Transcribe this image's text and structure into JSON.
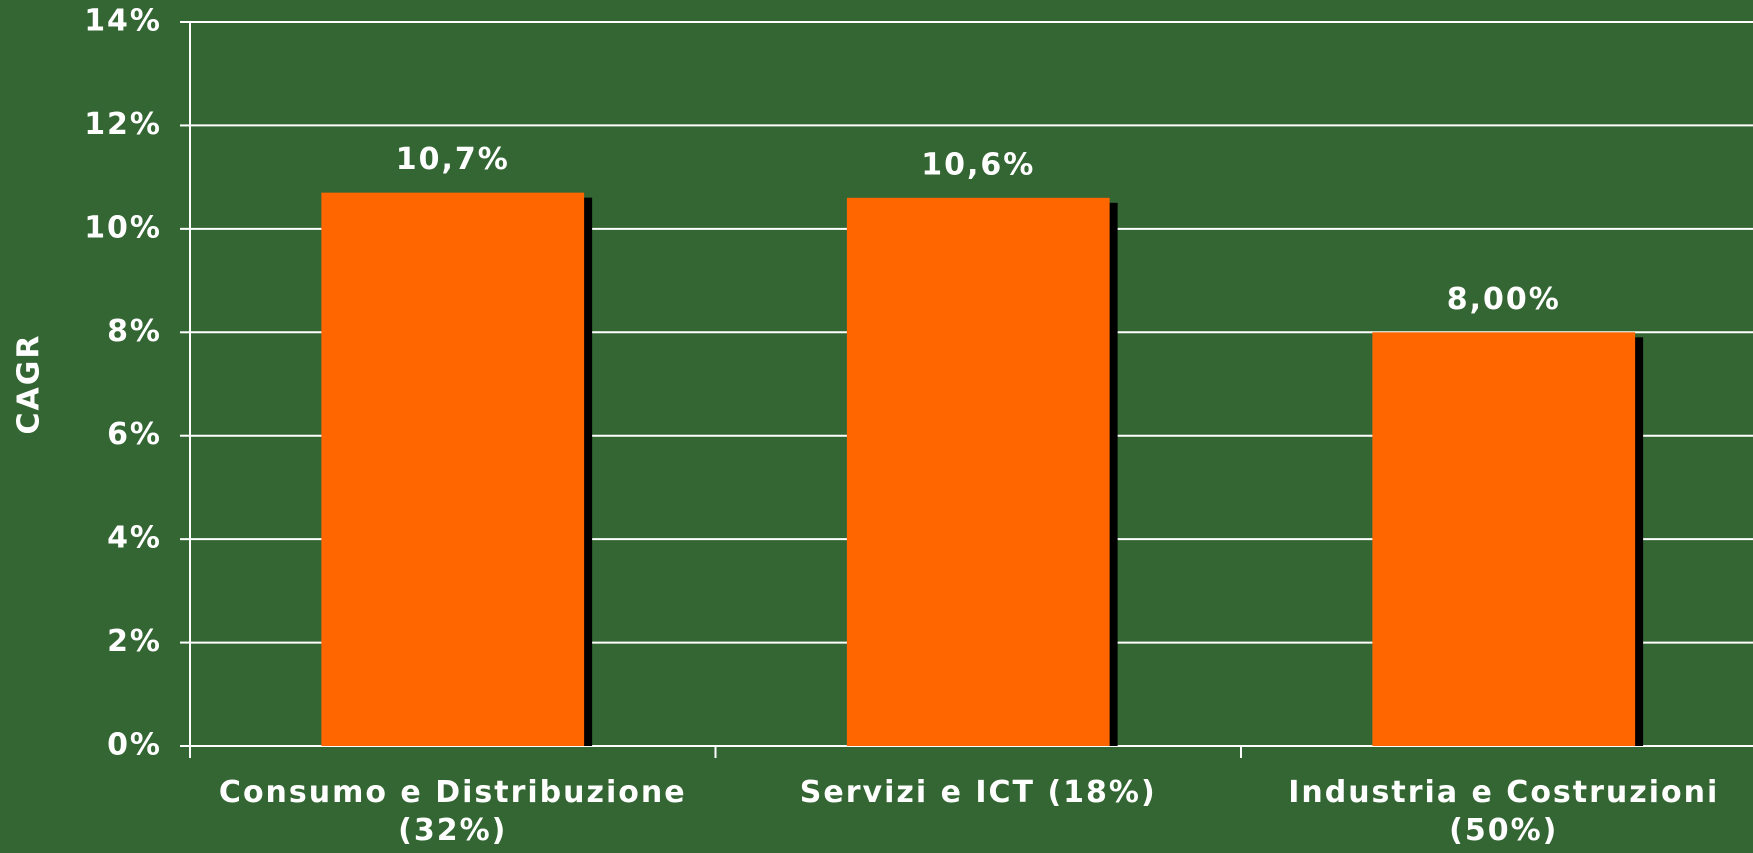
{
  "chart_data": {
    "type": "bar",
    "y_label": "CAGR",
    "categories": [
      "Consumo e Distribuzione (32%)",
      "Servizi e ICT (18%)",
      "Industria e Costruzioni (50%)"
    ],
    "values": [
      10.7,
      10.6,
      8.0
    ],
    "value_labels": [
      "10,7%",
      "10,6%",
      "8,00%"
    ],
    "color": "#ff6600",
    "ylim": [
      0,
      14
    ],
    "yticks": [
      {
        "value": 0,
        "label": "0%"
      },
      {
        "value": 2,
        "label": "2%"
      },
      {
        "value": 4,
        "label": "4%"
      },
      {
        "value": 6,
        "label": "6%"
      },
      {
        "value": 8,
        "label": "8%"
      },
      {
        "value": 10,
        "label": "10%"
      },
      {
        "value": 12,
        "label": "12%"
      },
      {
        "value": 14,
        "label": "14%"
      }
    ],
    "grid": true
  }
}
